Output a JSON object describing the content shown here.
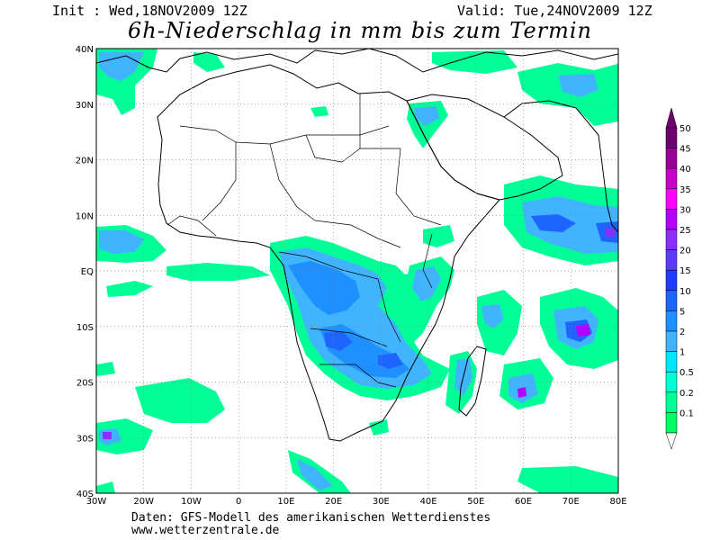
{
  "header": {
    "init": "Init : Wed,18NOV2009 12Z",
    "valid": "Valid: Tue,24NOV2009 12Z",
    "title": "6h-Niederschlag in mm bis zum Termin"
  },
  "footer": {
    "line1": "Daten: GFS-Modell des amerikanischen Wetterdienstes",
    "line2": "www.wetterzentrale.de"
  },
  "map": {
    "lon_labels": [
      "30W",
      "20W",
      "10W",
      "0",
      "10E",
      "20E",
      "30E",
      "40E",
      "50E",
      "60E",
      "70E",
      "80E"
    ],
    "lat_labels": [
      "40N",
      "30N",
      "20N",
      "10N",
      "EQ",
      "10S",
      "20S",
      "30S",
      "40S"
    ],
    "lon_range": [
      -30,
      80
    ],
    "lat_range": [
      -40,
      40
    ],
    "grid": "dotted"
  },
  "legend": {
    "values": [
      "50",
      "45",
      "40",
      "35",
      "30",
      "25",
      "20",
      "15",
      "10",
      "5",
      "2",
      "1",
      "0.5",
      "0.2",
      "0.1"
    ],
    "colors": [
      "#6e0070",
      "#960096",
      "#c800c8",
      "#ff00ff",
      "#b400ff",
      "#8c2cff",
      "#5a3cff",
      "#1e3cff",
      "#1e64ff",
      "#1e90ff",
      "#40b4ff",
      "#00e6ff",
      "#00ffd2",
      "#00ff96",
      "#00ff64"
    ]
  }
}
